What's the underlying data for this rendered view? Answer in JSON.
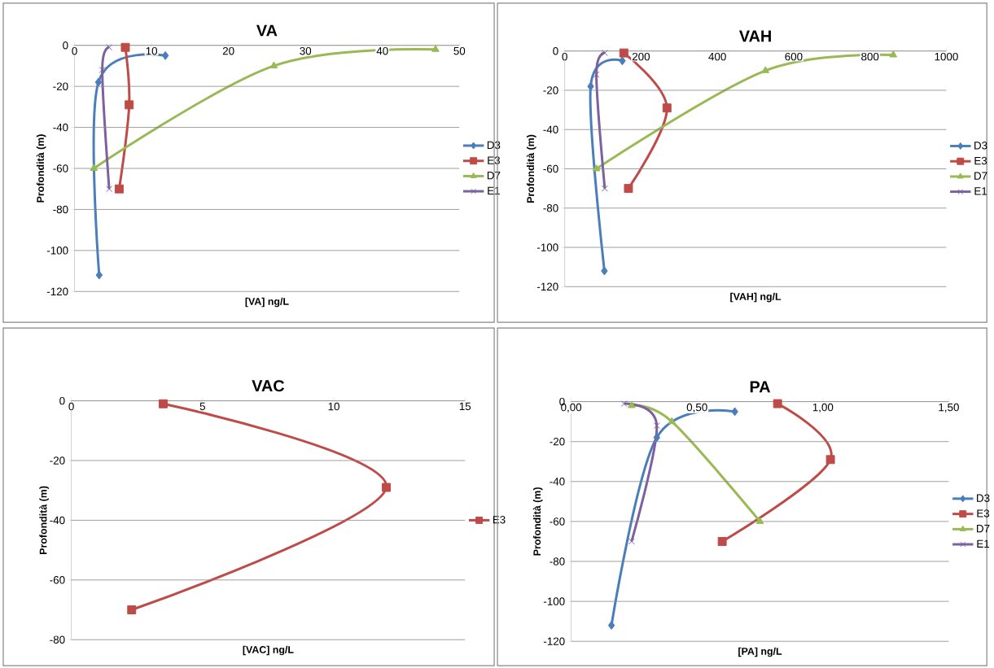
{
  "chart_data": [
    {
      "type": "line",
      "title": "VA",
      "xlabel": "[VA] ng/L",
      "ylabel": "Profondità (m)",
      "xlim": [
        0,
        50
      ],
      "xticks": [
        0,
        10,
        20,
        30,
        40,
        50
      ],
      "ylim": [
        -120,
        0
      ],
      "yticks": [
        -120,
        -100,
        -80,
        -60,
        -40,
        -20,
        0
      ],
      "grid": "y",
      "legend": "right",
      "series": [
        {
          "name": "D3",
          "color": "#4a7ebb",
          "marker": "diamond",
          "x": [
            11.8,
            3.1,
            3.2
          ],
          "values": [
            -5,
            -18,
            -112
          ]
        },
        {
          "name": "E3",
          "color": "#be4b48",
          "marker": "square",
          "x": [
            6.6,
            7.1,
            5.8
          ],
          "values": [
            -1,
            -29,
            -70
          ]
        },
        {
          "name": "D7",
          "color": "#98b954",
          "marker": "triangle",
          "x": [
            46.9,
            25.9,
            2.5
          ],
          "values": [
            -2,
            -10,
            -60
          ]
        },
        {
          "name": "E1",
          "color": "#7d60a0",
          "marker": "cross",
          "x": [
            4.5,
            3.6,
            4.5
          ],
          "values": [
            -1,
            -12,
            -70
          ]
        }
      ]
    },
    {
      "type": "line",
      "title": "VAH",
      "xlabel": "[VAH] ng/L",
      "ylabel": "Profondità (m)",
      "xlim": [
        0,
        1000
      ],
      "xticks": [
        0,
        200,
        400,
        600,
        800,
        1000
      ],
      "ylim": [
        -120,
        0
      ],
      "yticks": [
        -120,
        -100,
        -80,
        -60,
        -40,
        -20,
        0
      ],
      "grid": "y",
      "legend": "right",
      "series": [
        {
          "name": "D3",
          "color": "#4a7ebb",
          "marker": "diamond",
          "x": [
            151,
            68,
            104
          ],
          "values": [
            -5,
            -18,
            -112
          ]
        },
        {
          "name": "E3",
          "color": "#be4b48",
          "marker": "square",
          "x": [
            155,
            268,
            167
          ],
          "values": [
            -1,
            -29,
            -70
          ]
        },
        {
          "name": "D7",
          "color": "#98b954",
          "marker": "triangle",
          "x": [
            861,
            526,
            83
          ],
          "values": [
            -2,
            -10,
            -60
          ]
        },
        {
          "name": "E1",
          "color": "#7d60a0",
          "marker": "cross",
          "x": [
            105,
            83,
            105
          ],
          "values": [
            -1,
            -12,
            -70
          ]
        }
      ]
    },
    {
      "type": "line",
      "title": "VAC",
      "xlabel": "[VAC] ng/L",
      "ylabel": "Profondità (m)",
      "xlim": [
        0,
        15
      ],
      "xticks": [
        0,
        5,
        10,
        15
      ],
      "ylim": [
        -80,
        0
      ],
      "yticks": [
        -80,
        -60,
        -40,
        -20,
        0
      ],
      "grid": "y",
      "legend": "right",
      "series": [
        {
          "name": "E3",
          "color": "#be4b48",
          "marker": "square",
          "x": [
            3.5,
            12.0,
            2.3
          ],
          "values": [
            -1,
            -29,
            -70
          ]
        }
      ]
    },
    {
      "type": "line",
      "title": "PA",
      "xlabel": "[PA] ng/L",
      "ylabel": "Profondità (m)",
      "xlim": [
        0,
        1.5
      ],
      "xticks": [
        {
          "value": 0,
          "label": "0,00"
        },
        {
          "value": 0.5,
          "label": "0,50"
        },
        {
          "value": 1,
          "label": "1,00"
        },
        {
          "value": 1.5,
          "label": "1,50"
        }
      ],
      "ylim": [
        -120,
        0
      ],
      "yticks": [
        -120,
        -100,
        -80,
        -60,
        -40,
        -20,
        0
      ],
      "grid": "y",
      "legend": "right",
      "series": [
        {
          "name": "D3",
          "color": "#4a7ebb",
          "marker": "diamond",
          "x": [
            0.65,
            0.34,
            0.16
          ],
          "values": [
            -5,
            -18,
            -112
          ]
        },
        {
          "name": "E3",
          "color": "#be4b48",
          "marker": "square",
          "x": [
            0.82,
            1.03,
            0.6
          ],
          "values": [
            -1,
            -29,
            -70
          ]
        },
        {
          "name": "D7",
          "color": "#98b954",
          "marker": "triangle",
          "x": [
            0.24,
            0.4,
            0.75
          ],
          "values": [
            -2,
            -10,
            -60
          ]
        },
        {
          "name": "E1",
          "color": "#7d60a0",
          "marker": "cross",
          "x": [
            0.21,
            0.34,
            0.24
          ],
          "values": [
            -1,
            -12,
            -70
          ]
        }
      ]
    }
  ]
}
